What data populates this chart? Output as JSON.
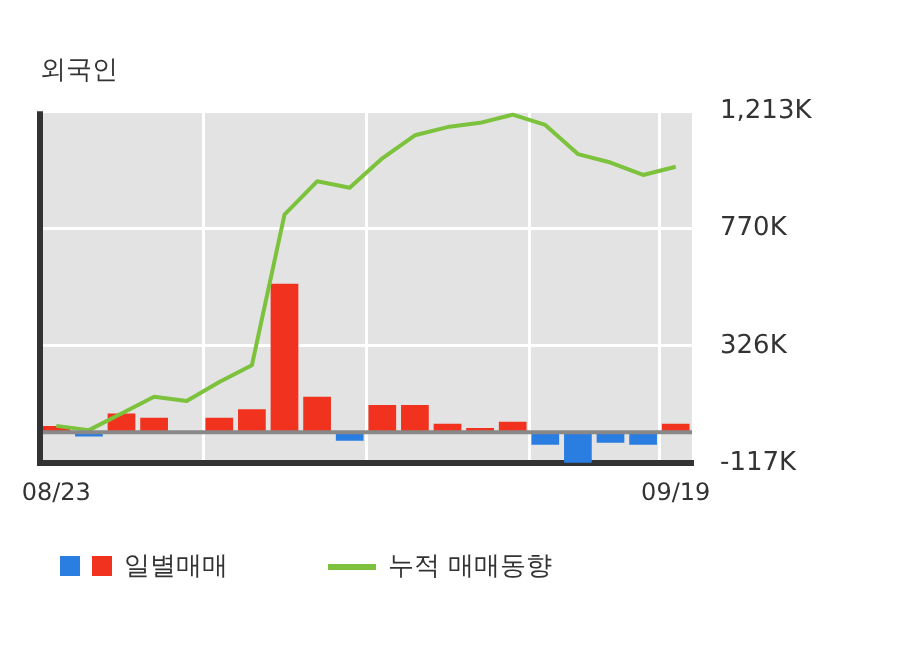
{
  "chart_data": {
    "type": "bar",
    "title": "외국인",
    "categories": [
      "08/23",
      null,
      null,
      null,
      null,
      null,
      null,
      null,
      null,
      null,
      null,
      null,
      null,
      null,
      null,
      null,
      null,
      null,
      null,
      "09/19"
    ],
    "series": [
      {
        "name": "일별매매",
        "colors": [
          "#f0321e",
          "#2a7de1",
          "#f0321e",
          "#f0321e",
          "#f0321e",
          "#f0321e",
          "#f0321e",
          "#f0321e",
          "#f0321e",
          "#2a7de1",
          "#f0321e",
          "#f0321e",
          "#f0321e",
          "#f0321e",
          "#f0321e",
          "#2a7de1",
          "#2a7de1",
          "#2a7de1",
          "#2a7de1",
          "#f0321e"
        ],
        "values": [
          24,
          -16,
          71,
          55,
          0,
          55,
          87,
          561,
          134,
          -32,
          103,
          103,
          32,
          16,
          40,
          -47,
          -115,
          -40,
          -47,
          32
        ]
      },
      {
        "name": "누적 매매동향",
        "type": "line",
        "color": "#7cc23c",
        "values": [
          24,
          8,
          71,
          134,
          118,
          190,
          253,
          822,
          948,
          924,
          1035,
          1122,
          1153,
          1169,
          1200,
          1161,
          1051,
          1019,
          972,
          1003
        ]
      }
    ],
    "ylim": [
      -117,
      1213
    ],
    "yticks": [
      {
        "value": -117,
        "label": "-117K"
      },
      {
        "value": 326,
        "label": "326K"
      },
      {
        "value": 770,
        "label": "770K"
      },
      {
        "value": 1213,
        "label": "1,213K"
      }
    ],
    "grid": true,
    "legend": "bottom",
    "marker": "none"
  }
}
